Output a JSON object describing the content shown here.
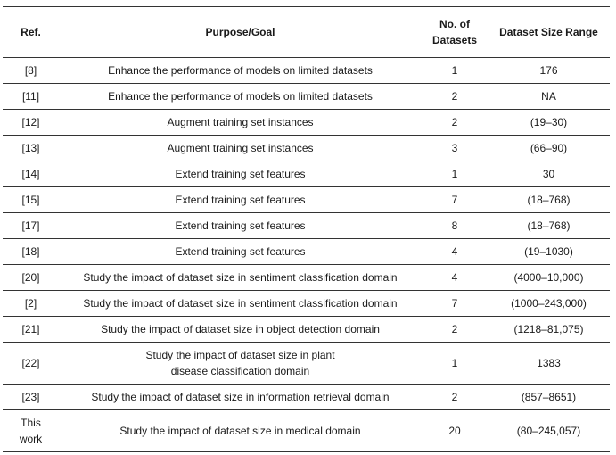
{
  "table": {
    "headers": {
      "ref": "Ref.",
      "purpose": "Purpose/Goal",
      "num_datasets": "No. of Datasets",
      "size_range": "Dataset Size Range"
    },
    "rows": [
      {
        "ref": "[8]",
        "purpose": "Enhance the performance of models on limited datasets",
        "num": "1",
        "range": "176"
      },
      {
        "ref": "[11]",
        "purpose": "Enhance the performance of models on limited datasets",
        "num": "2",
        "range": "NA"
      },
      {
        "ref": "[12]",
        "purpose": "Augment training set instances",
        "num": "2",
        "range": "(19–30)"
      },
      {
        "ref": "[13]",
        "purpose": "Augment training set instances",
        "num": "3",
        "range": "(66–90)"
      },
      {
        "ref": "[14]",
        "purpose": "Extend training set features",
        "num": "1",
        "range": "30"
      },
      {
        "ref": "[15]",
        "purpose": "Extend training set features",
        "num": "7",
        "range": "(18–768)"
      },
      {
        "ref": "[17]",
        "purpose": "Extend training set features",
        "num": "8",
        "range": "(18–768)"
      },
      {
        "ref": "[18]",
        "purpose": "Extend training set features",
        "num": "4",
        "range": "(19–1030)"
      },
      {
        "ref": "[20]",
        "purpose": "Study the impact of dataset size in sentiment classification domain",
        "num": "4",
        "range": "(4000–10,000)"
      },
      {
        "ref": "[2]",
        "purpose": "Study the impact of dataset size in sentiment classification domain",
        "num": "7",
        "range": "(1000–243,000)"
      },
      {
        "ref": "[21]",
        "purpose": "Study the impact of dataset size in object detection domain",
        "num": "2",
        "range": "(1218–81,075)"
      },
      {
        "ref": "[22]",
        "purpose": "Study the impact of dataset size in plant disease classification domain",
        "num": "1",
        "range": "1383"
      },
      {
        "ref": "[23]",
        "purpose": "Study the impact of dataset size in information retrieval domain",
        "num": "2",
        "range": "(857–8651)"
      },
      {
        "ref": "This work",
        "purpose": "Study the impact of dataset size in medical domain",
        "num": "20",
        "range": "(80–245,057)"
      }
    ]
  }
}
